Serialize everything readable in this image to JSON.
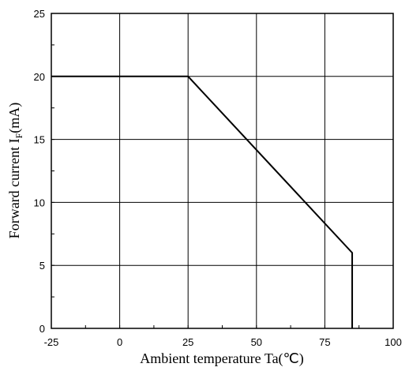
{
  "chart_data": {
    "type": "line",
    "title": "",
    "xlabel": "Ambient temperature Ta(℃)",
    "ylabel_main": "Forward current I",
    "ylabel_sub": "F",
    "ylabel_unit": "(mA)",
    "xlim": [
      -25,
      100
    ],
    "ylim": [
      0,
      25
    ],
    "x_ticks": [
      -25,
      0,
      25,
      50,
      75,
      100
    ],
    "x_tick_labels": [
      "-25",
      "0",
      "25",
      "50",
      "75",
      "100"
    ],
    "y_ticks": [
      0,
      5,
      10,
      15,
      20,
      25
    ],
    "y_tick_labels": [
      "0",
      "5",
      "10",
      "15",
      "20",
      "25"
    ],
    "grid": true,
    "series": [
      {
        "x": [
          -25,
          25,
          85,
          85
        ],
        "y": [
          20,
          20,
          6,
          0
        ],
        "color": "#000000"
      }
    ]
  }
}
